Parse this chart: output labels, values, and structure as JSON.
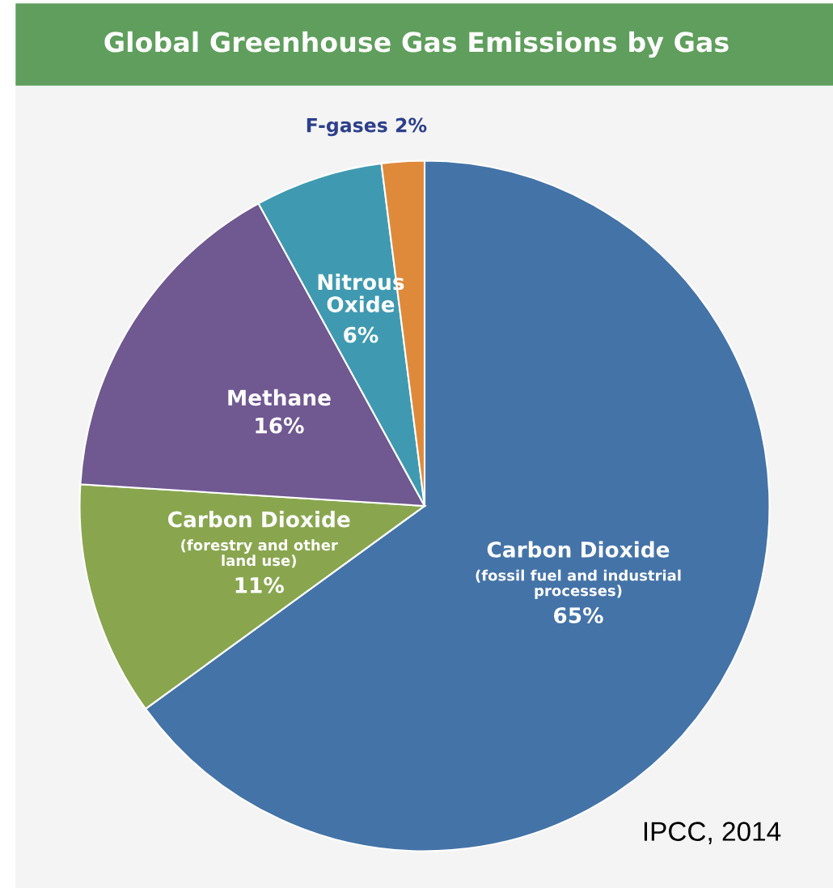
{
  "chart_data": {
    "type": "pie",
    "title": "Global Greenhouse Gas Emissions by Gas",
    "categories": [
      "Carbon Dioxide\n(fossil fuel and industrial\nprocesses)",
      "Carbon Dioxide\n(forestry and other\nland use)",
      "Methane",
      "Nitrous\nOxide",
      "F-gases"
    ],
    "values": [
      65,
      11,
      16,
      6,
      2
    ],
    "value_labels": [
      "65%",
      "11%",
      "16%",
      "6%",
      "2%"
    ],
    "colors": [
      "#4473a8",
      "#89a64f",
      "#705891",
      "#3f9ab1",
      "#df8a3b"
    ],
    "annotations": [
      "IPCC, 2014"
    ]
  }
}
